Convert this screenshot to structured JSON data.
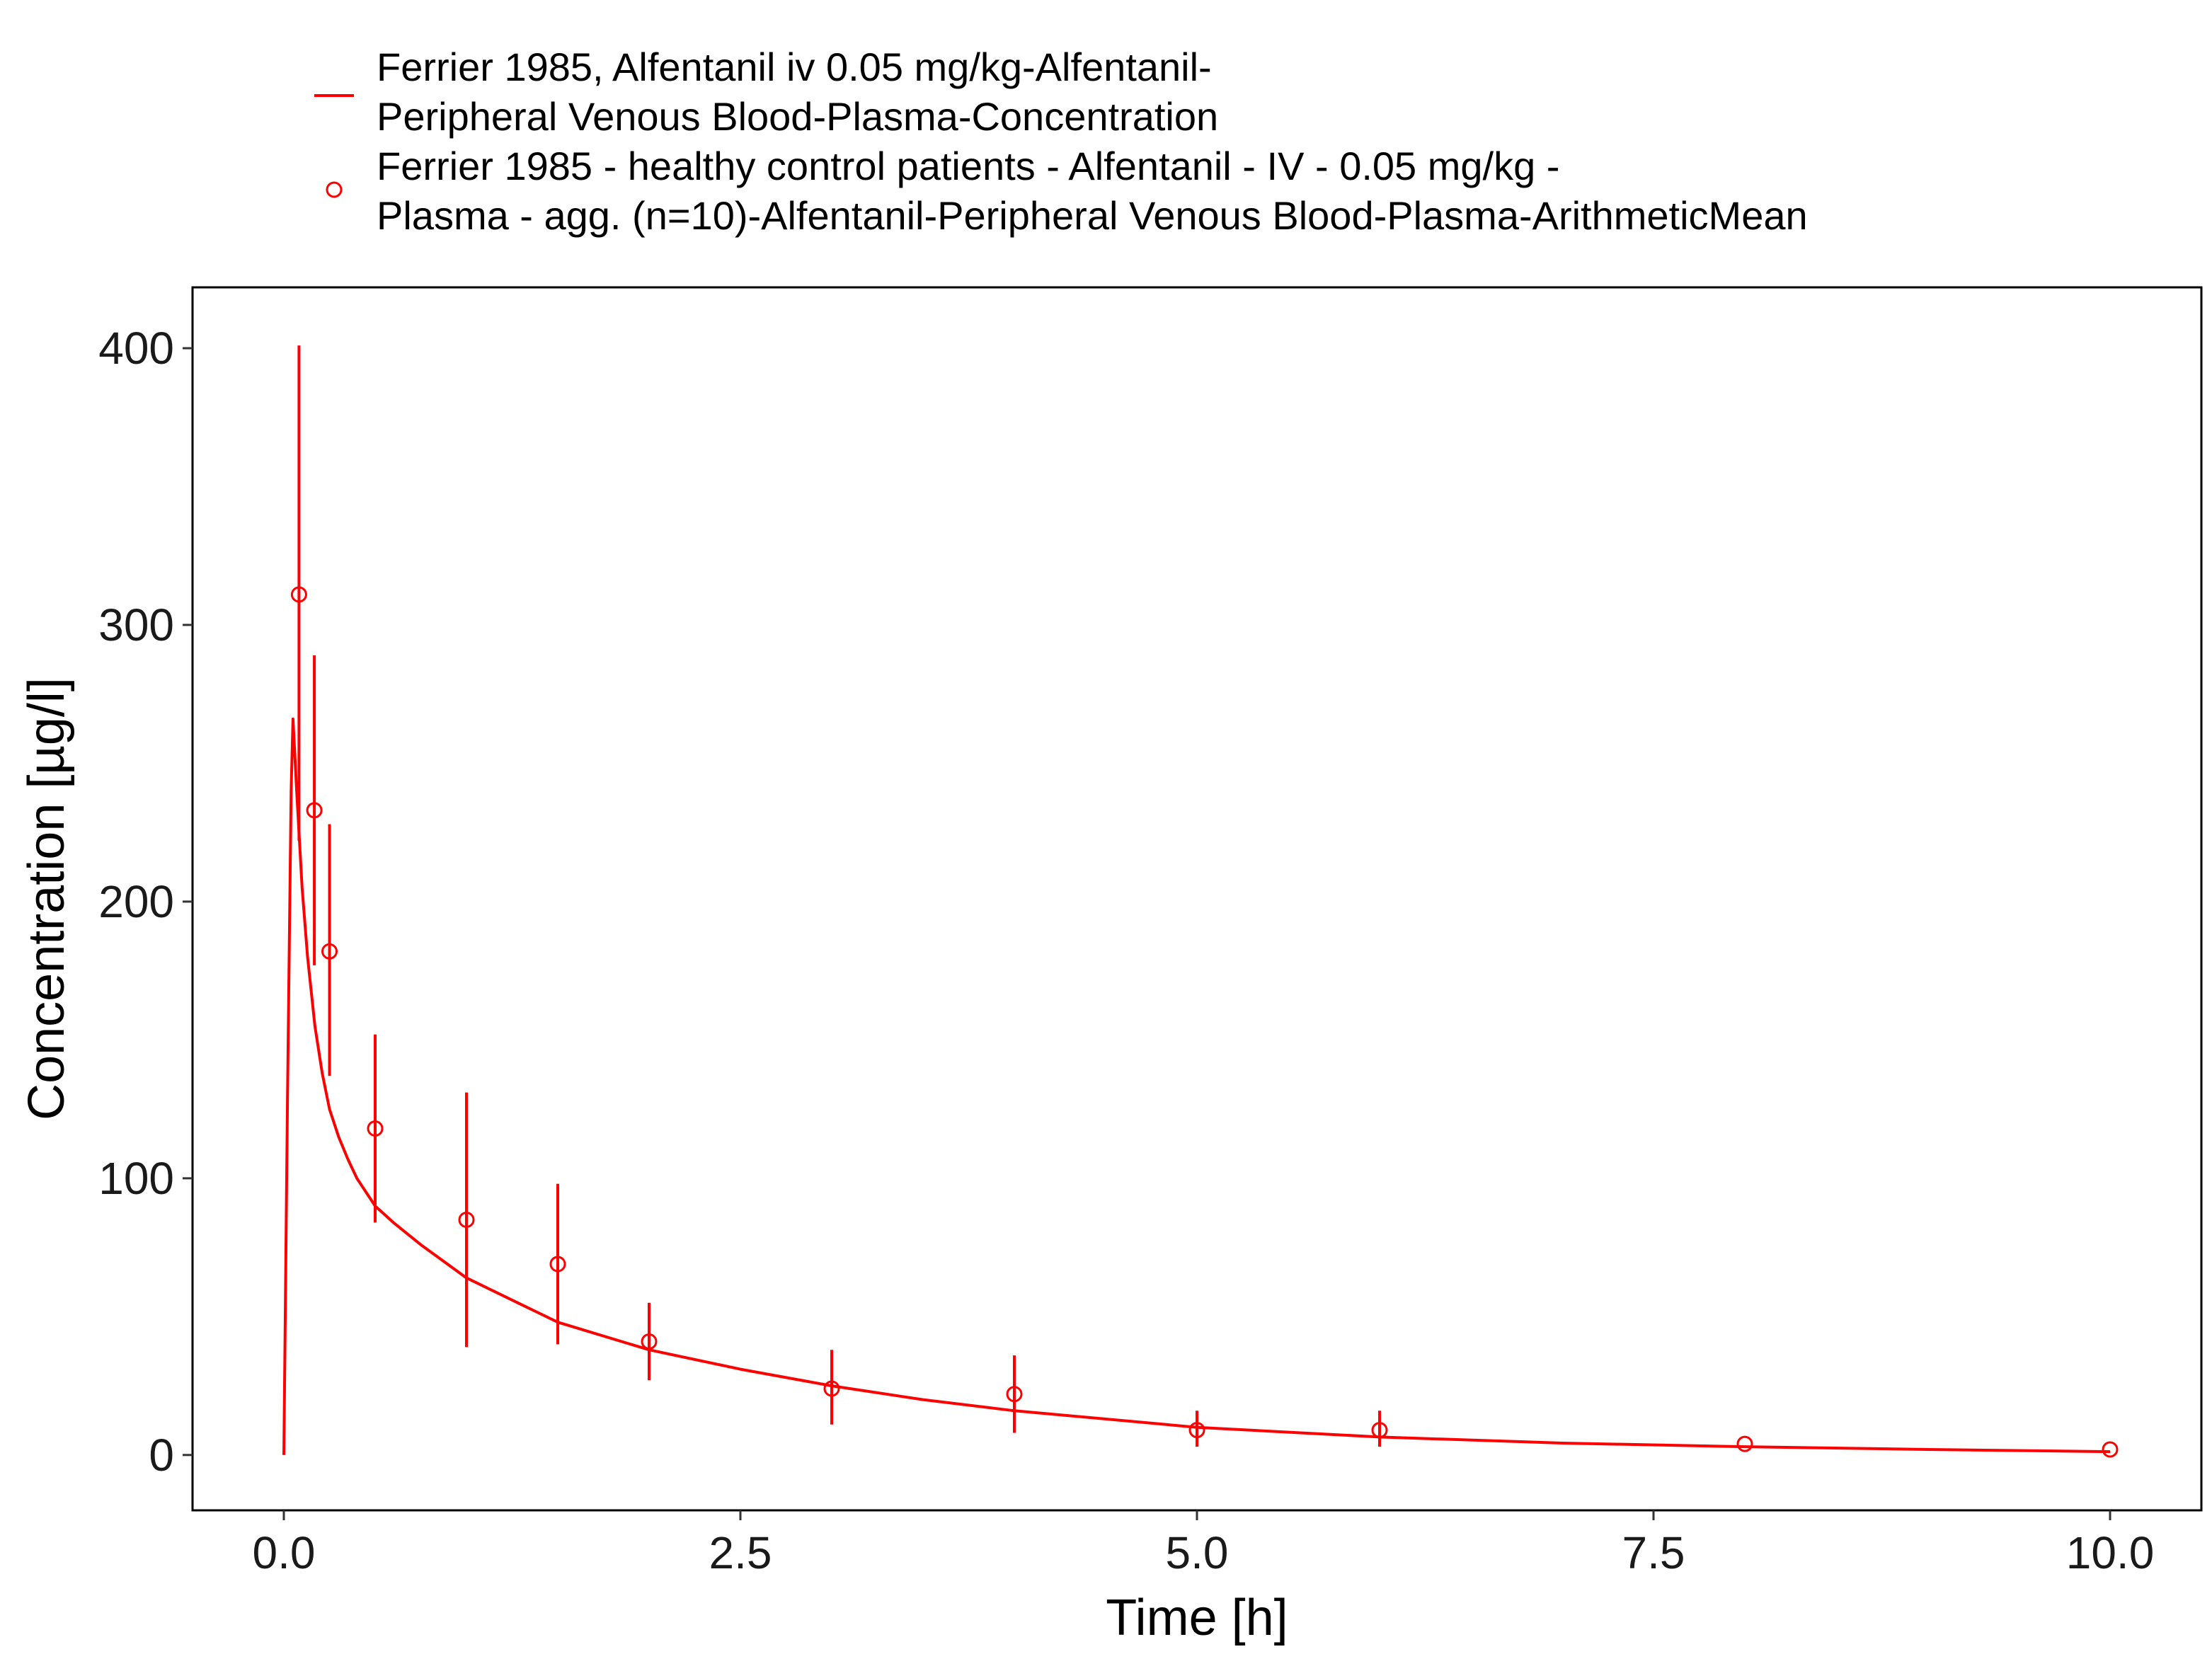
{
  "chart_data": {
    "type": "line",
    "xlabel": "Time [h]",
    "ylabel": "Concentration [µg/l]",
    "xlim": [
      -0.5,
      10.5
    ],
    "ylim": [
      -20,
      422
    ],
    "xticks": [
      0.0,
      2.5,
      5.0,
      7.5,
      10.0
    ],
    "xtick_labels": [
      "0.0",
      "2.5",
      "5.0",
      "7.5",
      "10.0"
    ],
    "yticks": [
      0,
      100,
      200,
      300,
      400
    ],
    "ytick_labels": [
      "0",
      "100",
      "200",
      "300",
      "400"
    ],
    "grid": false,
    "legend_position": "top",
    "color": "#ff0000",
    "series": [
      {
        "name": "Ferrier 1985, Alfentanil iv 0.05 mg/kg-Alfentanil-Peripheral Venous Blood-Plasma-Concentration",
        "legend_lines": [
          "Ferrier 1985, Alfentanil iv 0.05 mg/kg-Alfentanil-",
          "Peripheral Venous Blood-Plasma-Concentration"
        ],
        "kind": "line",
        "x": [
          0.0,
          0.02,
          0.04,
          0.05,
          0.07,
          0.1,
          0.13,
          0.17,
          0.21,
          0.25,
          0.3,
          0.35,
          0.4,
          0.5,
          0.6,
          0.75,
          1.0,
          1.25,
          1.5,
          2.0,
          2.5,
          3.0,
          3.5,
          4.0,
          5.0,
          6.0,
          7.0,
          8.0,
          9.0,
          10.0
        ],
        "y": [
          0,
          130,
          240,
          266,
          240,
          205,
          180,
          155,
          138,
          125,
          115,
          107,
          100,
          90,
          84,
          76,
          64,
          56,
          48,
          38,
          31,
          25,
          20,
          16,
          10,
          6.5,
          4.3,
          3.0,
          2.0,
          1.2
        ]
      },
      {
        "name": "Ferrier 1985 - healthy control patients - Alfentanil - IV - 0.05 mg/kg - Plasma - agg. (n=10)-Alfentanil-Peripheral Venous Blood-Plasma-ArithmeticMean",
        "legend_lines": [
          "Ferrier 1985 - healthy control patients - Alfentanil - IV - 0.05 mg/kg -",
          "Plasma - agg. (n=10)-Alfentanil-Peripheral Venous Blood-Plasma-ArithmeticMean"
        ],
        "kind": "scatter",
        "x": [
          0.083,
          0.167,
          0.25,
          0.5,
          1.0,
          1.5,
          2.0,
          3.0,
          4.0,
          5.0,
          6.0,
          8.0,
          10.0
        ],
        "y": [
          311,
          233,
          182,
          118,
          85,
          69,
          41,
          24,
          22,
          9,
          9,
          4,
          2
        ],
        "error_low": [
          222,
          177,
          137,
          84,
          39,
          40,
          27,
          11,
          8,
          3,
          3,
          4,
          2
        ],
        "error_high": [
          401,
          289,
          228,
          152,
          131,
          98,
          55,
          38,
          36,
          16,
          16,
          4,
          2
        ]
      }
    ]
  }
}
